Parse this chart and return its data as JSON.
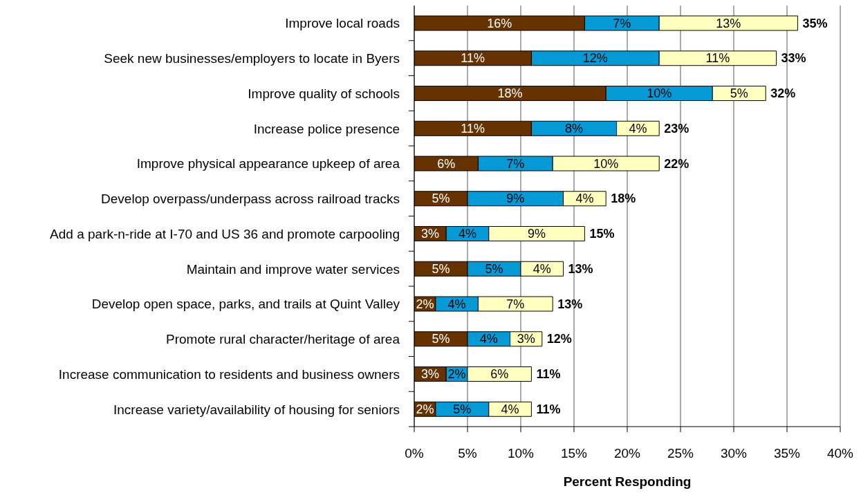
{
  "chart_data": {
    "type": "bar",
    "orientation": "horizontal",
    "stacked": true,
    "categories": [
      "Improve local roads",
      "Seek new businesses/employers to locate in Byers",
      "Improve quality of schools",
      "Increase police presence",
      "Improve physical appearance upkeep of area",
      "Develop overpass/underpass across railroad tracks",
      "Add a park-n-ride at I-70 and US 36 and promote carpooling",
      "Maintain and improve water services",
      "Develop open space, parks, and trails at Quint Valley",
      "Promote rural character/heritage of area",
      "Increase communication to residents and business owners",
      "Increase variety/availability of housing for seniors"
    ],
    "series": [
      {
        "color": "#663300",
        "values": [
          16,
          11,
          18,
          11,
          6,
          5,
          3,
          5,
          2,
          5,
          3,
          2
        ],
        "value_labels": [
          "16%",
          "11%",
          "18%",
          "11%",
          "6%",
          "5%",
          "3%",
          "5%",
          "2%",
          "5%",
          "3%",
          "2%"
        ]
      },
      {
        "color": "#0599d5",
        "values": [
          7,
          12,
          10,
          8,
          7,
          9,
          4,
          5,
          4,
          4,
          2,
          5
        ],
        "value_labels": [
          "7%",
          "12%",
          "10%",
          "8%",
          "7%",
          "9%",
          "4%",
          "5%",
          "4%",
          "4%",
          "2%",
          "5%"
        ]
      },
      {
        "color": "#ffffc0",
        "values": [
          13,
          11,
          5,
          4,
          10,
          4,
          9,
          4,
          7,
          3,
          6,
          4
        ],
        "value_labels": [
          "13%",
          "11%",
          "5%",
          "4%",
          "10%",
          "4%",
          "9%",
          "4%",
          "7%",
          "3%",
          "6%",
          "4%"
        ]
      }
    ],
    "totals": [
      "35%",
      "33%",
      "32%",
      "23%",
      "22%",
      "18%",
      "15%",
      "13%",
      "13%",
      "12%",
      "11%",
      "11%"
    ],
    "xlabel": "Percent Responding",
    "xlim": [
      0,
      40
    ],
    "xticks": [
      {
        "value": 0,
        "label": "0%"
      },
      {
        "value": 5,
        "label": "5%"
      },
      {
        "value": 10,
        "label": "10%"
      },
      {
        "value": 15,
        "label": "15%"
      },
      {
        "value": 20,
        "label": "20%"
      },
      {
        "value": 25,
        "label": "25%"
      },
      {
        "value": 30,
        "label": "30%"
      },
      {
        "value": 35,
        "label": "35%"
      },
      {
        "value": 40,
        "label": "40%"
      }
    ],
    "grid": "x"
  }
}
